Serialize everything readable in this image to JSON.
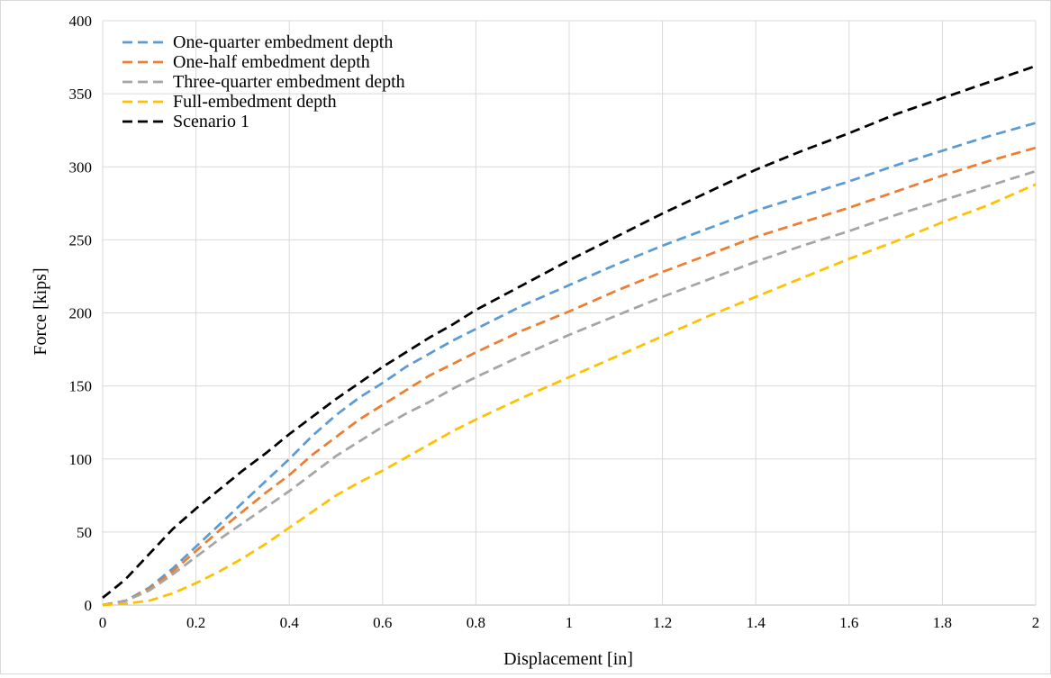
{
  "chart_data": {
    "type": "line",
    "title": "",
    "xlabel": "Displacement  [in]",
    "ylabel": "Force [kips]",
    "xlim": [
      0,
      2
    ],
    "ylim": [
      0,
      400
    ],
    "x_ticks": [
      0,
      0.2,
      0.4,
      0.6,
      0.8,
      1,
      1.2,
      1.4,
      1.6,
      1.8,
      2
    ],
    "y_ticks": [
      0,
      50,
      100,
      150,
      200,
      250,
      300,
      350,
      400
    ],
    "grid": "vertical and horizontal major gridlines",
    "legend_position": "top-left, inside plot",
    "line_style": "dashed",
    "series": [
      {
        "name": "One-quarter embedment depth",
        "color": "#5b9bd5",
        "points": [
          [
            0,
            0
          ],
          [
            0.05,
            3
          ],
          [
            0.1,
            12
          ],
          [
            0.15,
            25
          ],
          [
            0.2,
            40
          ],
          [
            0.25,
            55
          ],
          [
            0.3,
            70
          ],
          [
            0.35,
            85
          ],
          [
            0.4,
            100
          ],
          [
            0.45,
            116
          ],
          [
            0.5,
            130
          ],
          [
            0.55,
            142
          ],
          [
            0.6,
            152
          ],
          [
            0.65,
            163
          ],
          [
            0.7,
            172
          ],
          [
            0.75,
            181
          ],
          [
            0.8,
            189
          ],
          [
            0.9,
            205
          ],
          [
            1.0,
            219
          ],
          [
            1.1,
            233
          ],
          [
            1.2,
            246
          ],
          [
            1.3,
            258
          ],
          [
            1.4,
            270
          ],
          [
            1.5,
            280
          ],
          [
            1.6,
            290
          ],
          [
            1.7,
            301
          ],
          [
            1.8,
            311
          ],
          [
            1.9,
            321
          ],
          [
            2.0,
            330
          ]
        ]
      },
      {
        "name": "One-half embedment depth",
        "color": "#ed7d31",
        "points": [
          [
            0,
            0
          ],
          [
            0.05,
            3
          ],
          [
            0.1,
            11
          ],
          [
            0.15,
            23
          ],
          [
            0.2,
            37
          ],
          [
            0.25,
            51
          ],
          [
            0.3,
            64
          ],
          [
            0.35,
            77
          ],
          [
            0.4,
            89
          ],
          [
            0.45,
            103
          ],
          [
            0.5,
            115
          ],
          [
            0.55,
            127
          ],
          [
            0.6,
            137
          ],
          [
            0.65,
            147
          ],
          [
            0.7,
            157
          ],
          [
            0.75,
            165
          ],
          [
            0.8,
            173
          ],
          [
            0.9,
            188
          ],
          [
            1.0,
            201
          ],
          [
            1.1,
            215
          ],
          [
            1.2,
            228
          ],
          [
            1.3,
            240
          ],
          [
            1.4,
            252
          ],
          [
            1.5,
            262
          ],
          [
            1.6,
            272
          ],
          [
            1.7,
            283
          ],
          [
            1.8,
            294
          ],
          [
            1.9,
            304
          ],
          [
            2.0,
            313
          ]
        ]
      },
      {
        "name": "Three-quarter embedment depth",
        "color": "#a5a5a5",
        "points": [
          [
            0,
            0
          ],
          [
            0.05,
            3
          ],
          [
            0.1,
            10
          ],
          [
            0.15,
            21
          ],
          [
            0.2,
            33
          ],
          [
            0.25,
            45
          ],
          [
            0.3,
            56
          ],
          [
            0.35,
            67
          ],
          [
            0.4,
            78
          ],
          [
            0.45,
            90
          ],
          [
            0.5,
            102
          ],
          [
            0.55,
            112
          ],
          [
            0.6,
            122
          ],
          [
            0.65,
            131
          ],
          [
            0.7,
            139
          ],
          [
            0.75,
            148
          ],
          [
            0.8,
            156
          ],
          [
            0.9,
            171
          ],
          [
            1.0,
            185
          ],
          [
            1.1,
            198
          ],
          [
            1.2,
            211
          ],
          [
            1.3,
            223
          ],
          [
            1.4,
            235
          ],
          [
            1.5,
            246
          ],
          [
            1.6,
            256
          ],
          [
            1.7,
            267
          ],
          [
            1.8,
            277
          ],
          [
            1.9,
            287
          ],
          [
            2.0,
            297
          ]
        ]
      },
      {
        "name": "Full-embedment depth",
        "color": "#ffc000",
        "points": [
          [
            0,
            0
          ],
          [
            0.05,
            1
          ],
          [
            0.1,
            3
          ],
          [
            0.15,
            8
          ],
          [
            0.2,
            15
          ],
          [
            0.25,
            23
          ],
          [
            0.3,
            32
          ],
          [
            0.35,
            42
          ],
          [
            0.4,
            53
          ],
          [
            0.45,
            64
          ],
          [
            0.5,
            75
          ],
          [
            0.55,
            84
          ],
          [
            0.6,
            92
          ],
          [
            0.65,
            101
          ],
          [
            0.7,
            110
          ],
          [
            0.75,
            119
          ],
          [
            0.8,
            127
          ],
          [
            0.9,
            142
          ],
          [
            1.0,
            156
          ],
          [
            1.1,
            170
          ],
          [
            1.2,
            184
          ],
          [
            1.3,
            198
          ],
          [
            1.4,
            211
          ],
          [
            1.5,
            224
          ],
          [
            1.6,
            237
          ],
          [
            1.7,
            249
          ],
          [
            1.8,
            262
          ],
          [
            1.9,
            274
          ],
          [
            2.0,
            288
          ]
        ]
      },
      {
        "name": "Scenario 1",
        "color": "#000000",
        "points": [
          [
            0,
            5
          ],
          [
            0.02,
            10
          ],
          [
            0.05,
            18
          ],
          [
            0.1,
            35
          ],
          [
            0.15,
            52
          ],
          [
            0.2,
            66
          ],
          [
            0.25,
            79
          ],
          [
            0.3,
            92
          ],
          [
            0.35,
            104
          ],
          [
            0.4,
            117
          ],
          [
            0.45,
            129
          ],
          [
            0.5,
            141
          ],
          [
            0.55,
            152
          ],
          [
            0.6,
            163
          ],
          [
            0.65,
            173
          ],
          [
            0.7,
            183
          ],
          [
            0.75,
            192
          ],
          [
            0.8,
            202
          ],
          [
            0.9,
            219
          ],
          [
            1.0,
            236
          ],
          [
            1.1,
            252
          ],
          [
            1.2,
            268
          ],
          [
            1.3,
            283
          ],
          [
            1.4,
            298
          ],
          [
            1.5,
            311
          ],
          [
            1.6,
            323
          ],
          [
            1.7,
            336
          ],
          [
            1.8,
            347
          ],
          [
            1.9,
            358
          ],
          [
            2.0,
            369
          ]
        ]
      }
    ]
  }
}
